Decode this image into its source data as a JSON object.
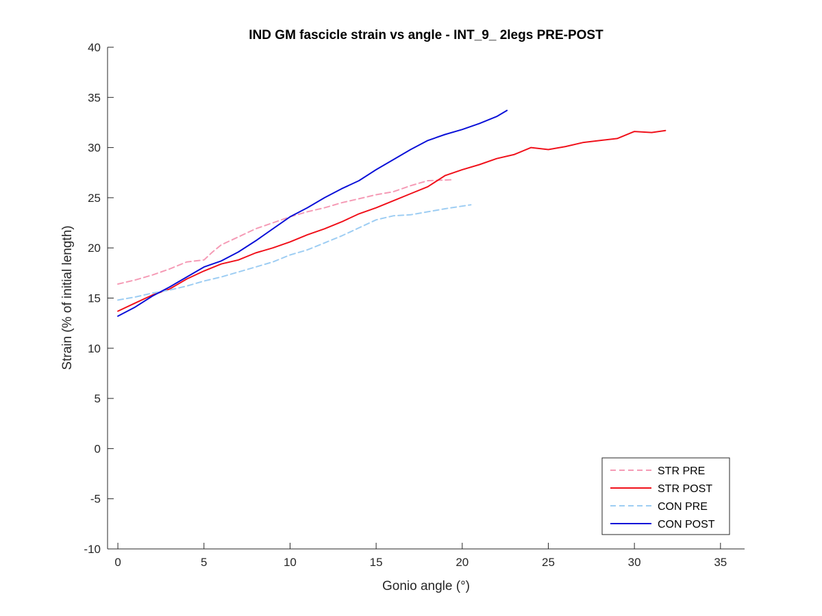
{
  "chart_data": {
    "type": "line",
    "title": "IND GM fascicle strain vs angle - INT_9_ 2legs PRE-POST",
    "xlabel": "Gonio angle (°)",
    "ylabel": "Strain (% of initial length)",
    "xlim": [
      -0.6,
      36.4
    ],
    "ylim": [
      -10,
      40
    ],
    "xticks": [
      0,
      5,
      10,
      15,
      20,
      25,
      30,
      35
    ],
    "yticks": [
      -10,
      -5,
      0,
      5,
      10,
      15,
      20,
      25,
      30,
      35,
      40
    ],
    "grid": false,
    "legend_position": "bottom-right",
    "series": [
      {
        "name": "STR PRE",
        "color": "#F59AB5",
        "dash": "dashed",
        "x": [
          0,
          1,
          2,
          3,
          4,
          5,
          5.5,
          6,
          7,
          8,
          9,
          10,
          11,
          12,
          13,
          14,
          15,
          16,
          17,
          18,
          19.5
        ],
        "y": [
          16.4,
          16.8,
          17.3,
          17.9,
          18.6,
          18.8,
          19.6,
          20.3,
          21.1,
          21.9,
          22.5,
          23.1,
          23.6,
          24.0,
          24.5,
          24.9,
          25.3,
          25.6,
          26.2,
          26.7,
          26.8
        ]
      },
      {
        "name": "STR POST",
        "color": "#F0101A",
        "dash": "solid",
        "x": [
          0,
          1,
          2,
          3,
          4,
          5,
          6,
          7,
          8,
          9,
          10,
          11,
          12,
          13,
          14,
          15,
          16,
          17,
          18,
          19,
          20,
          21,
          22,
          23,
          24,
          25,
          26,
          27,
          28,
          29,
          30,
          31,
          31.8
        ],
        "y": [
          13.7,
          14.5,
          15.3,
          15.9,
          16.9,
          17.7,
          18.4,
          18.8,
          19.5,
          20.0,
          20.6,
          21.3,
          21.9,
          22.6,
          23.4,
          24.0,
          24.7,
          25.4,
          26.1,
          27.2,
          27.8,
          28.3,
          28.9,
          29.3,
          30.0,
          29.8,
          30.1,
          30.5,
          30.7,
          30.9,
          31.6,
          31.5,
          31.7
        ]
      },
      {
        "name": "CON PRE",
        "color": "#9DCDF3",
        "dash": "dashed",
        "x": [
          0,
          1,
          2,
          3,
          4,
          5,
          6,
          7,
          8,
          9,
          10,
          11,
          12,
          13,
          14,
          15,
          16,
          17,
          18,
          19,
          20.5
        ],
        "y": [
          14.8,
          15.1,
          15.5,
          15.8,
          16.2,
          16.7,
          17.1,
          17.6,
          18.1,
          18.6,
          19.3,
          19.8,
          20.5,
          21.2,
          22.0,
          22.8,
          23.2,
          23.3,
          23.6,
          23.9,
          24.3
        ]
      },
      {
        "name": "CON POST",
        "color": "#0A10D8",
        "dash": "solid",
        "x": [
          0,
          1,
          2,
          3,
          4,
          5,
          6,
          7,
          8,
          9,
          10,
          11,
          12,
          13,
          14,
          15,
          16,
          17,
          18,
          19,
          20,
          21,
          22,
          22.6
        ],
        "y": [
          13.2,
          14.1,
          15.2,
          16.1,
          17.1,
          18.1,
          18.7,
          19.6,
          20.7,
          21.9,
          23.1,
          24.0,
          25.0,
          25.9,
          26.7,
          27.8,
          28.8,
          29.8,
          30.7,
          31.3,
          31.8,
          32.4,
          33.1,
          33.7
        ]
      }
    ]
  }
}
